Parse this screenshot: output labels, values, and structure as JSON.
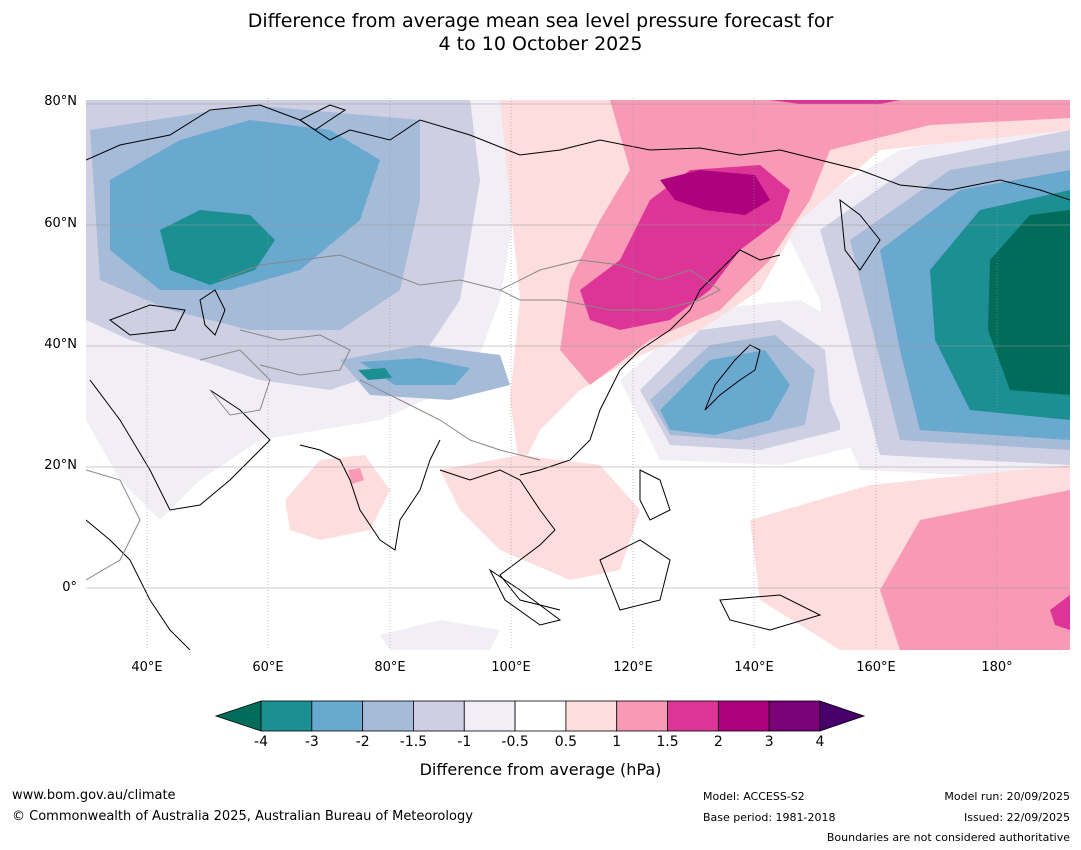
{
  "title": {
    "line1": "Difference from average mean sea level pressure forecast for",
    "line2": "4 to 10 October 2025"
  },
  "map": {
    "lat_labels": [
      "80°N",
      "60°N",
      "40°N",
      "20°N",
      "0°"
    ],
    "lon_labels": [
      "40°E",
      "60°E",
      "80°E",
      "100°E",
      "120°E",
      "140°E",
      "160°E",
      "180°"
    ],
    "extent": {
      "lon_min": 30,
      "lon_max": 192,
      "lat_min": -10,
      "lat_max": 80
    },
    "anomaly_regions": [
      {
        "name": "western-russia-low",
        "min_value": -4,
        "center_lon": 50,
        "center_lat": 57
      },
      {
        "name": "tibet-low",
        "min_value": -3,
        "center_lon": 78,
        "center_lat": 36
      },
      {
        "name": "japan-low",
        "min_value": -2,
        "center_lon": 135,
        "center_lat": 32
      },
      {
        "name": "north-pacific-low",
        "min_value": -4,
        "center_lon": 185,
        "center_lat": 50
      },
      {
        "name": "siberia-high",
        "max_value": 3,
        "center_lon": 128,
        "center_lat": 60
      },
      {
        "name": "mongolia-high",
        "max_value": 2,
        "center_lon": 120,
        "center_lat": 45
      },
      {
        "name": "south-pacific-high",
        "max_value": 2,
        "center_lon": 180,
        "center_lat": 0
      },
      {
        "name": "southeast-asia-high",
        "max_value": 1,
        "center_lon": 112,
        "center_lat": 15
      },
      {
        "name": "india-high",
        "max_value": 1.5,
        "center_lon": 75,
        "center_lat": 17
      }
    ]
  },
  "colorbar": {
    "ticks": [
      "-4",
      "-3",
      "-2",
      "-1.5",
      "-1",
      "-0.5",
      "0.5",
      "1",
      "1.5",
      "2",
      "3",
      "4"
    ],
    "colors": [
      "#1b8f91",
      "#69a9cf",
      "#a5bbd8",
      "#cfcfe3",
      "#f2eef6",
      "#ffffff",
      "#fddddd",
      "#f89ab6",
      "#dd3497",
      "#ad017e",
      "#7a0177"
    ],
    "under_color": "#016c59",
    "over_color": "#49006a",
    "label": "Difference from average (hPa)"
  },
  "footer": {
    "website": "www.bom.gov.au/climate",
    "copyright": "© Commonwealth of Australia 2025, Australian Bureau of Meteorology",
    "model": "Model: ACCESS-S2",
    "base_period": "Base period: 1981-2018",
    "model_run": "Model run: 20/09/2025",
    "issued": "Issued: 22/09/2025",
    "disclaimer": "Boundaries are not considered authoritative"
  }
}
